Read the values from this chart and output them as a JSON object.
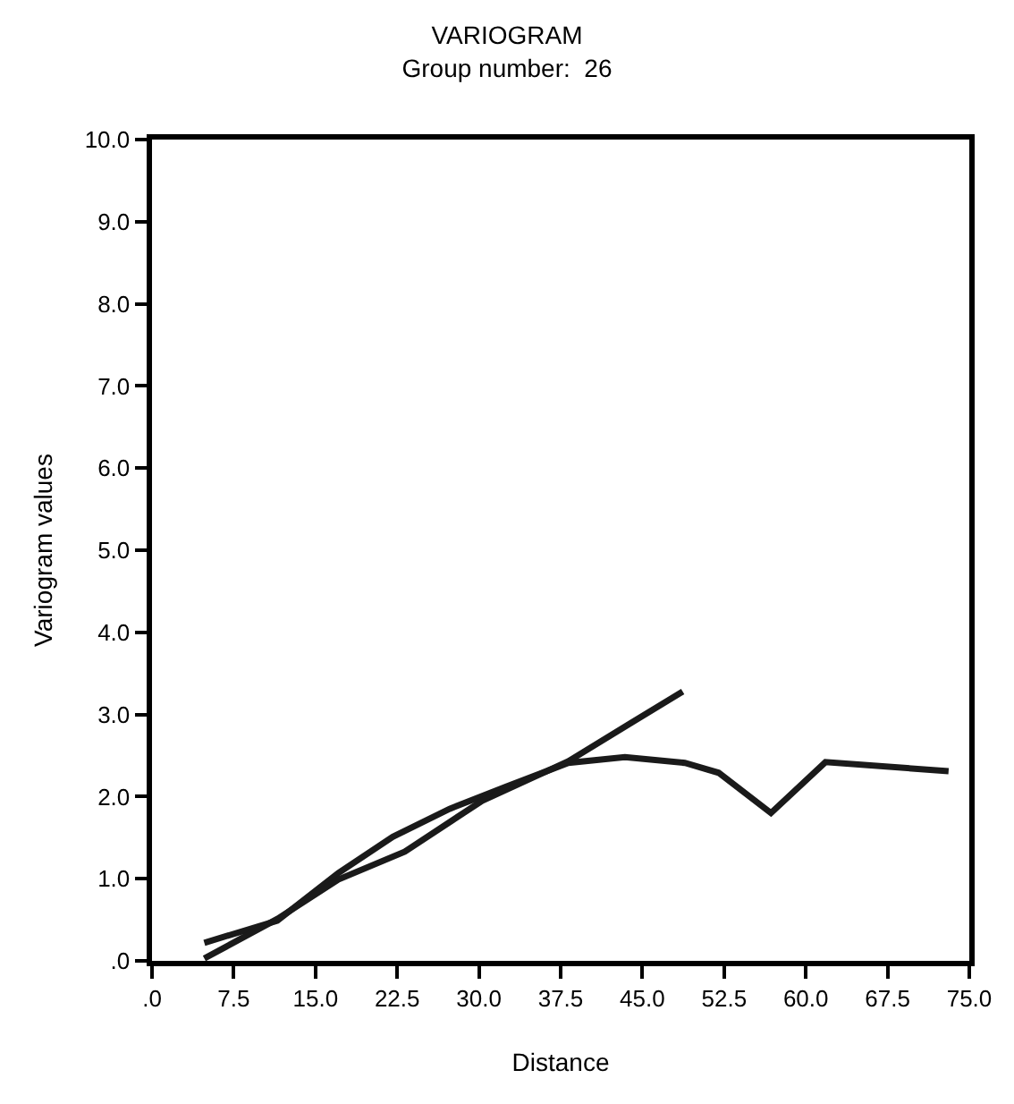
{
  "chart_data": {
    "type": "line",
    "title": "VARIOGRAM",
    "subtitle": "Group number:  26",
    "xlabel": "Distance",
    "ylabel": "Variogram values",
    "series": [
      {
        "color": "#1a1a1a",
        "x": [
          4.8,
          11.5,
          17.1,
          22.1,
          27.3,
          32.5,
          38.2,
          43.4,
          48.9,
          52.0,
          56.8,
          61.8,
          73.1
        ],
        "values": [
          0.22,
          0.49,
          1.07,
          1.51,
          1.85,
          2.12,
          2.41,
          2.48,
          2.41,
          2.29,
          1.8,
          2.42,
          2.31
        ]
      },
      {
        "color": "#1a1a1a",
        "x": [
          4.8,
          11.5,
          17.1,
          23.2,
          30.3,
          38.2,
          44.0,
          48.7
        ],
        "values": [
          0.03,
          0.51,
          0.99,
          1.33,
          1.95,
          2.43,
          2.9,
          3.28
        ]
      }
    ],
    "xlim": [
      0,
      75
    ],
    "ylim": [
      0,
      10
    ],
    "xticks": [
      {
        "value": 0,
        "label": ".0"
      },
      7.5,
      {
        "value": 15,
        "label": "15.0"
      },
      22.5,
      {
        "value": 30,
        "label": "30.0"
      },
      37.5,
      {
        "value": 45,
        "label": "45.0"
      },
      52.5,
      {
        "value": 60,
        "label": "60.0"
      },
      67.5,
      {
        "value": 75,
        "label": "75.0"
      }
    ],
    "yticks": [
      {
        "value": 0,
        "label": ".0"
      },
      {
        "value": 1,
        "label": "1.0"
      },
      {
        "value": 2,
        "label": "2.0"
      },
      {
        "value": 3,
        "label": "3.0"
      },
      {
        "value": 4,
        "label": "4.0"
      },
      {
        "value": 5,
        "label": "5.0"
      },
      {
        "value": 6,
        "label": "6.0"
      },
      {
        "value": 7,
        "label": "7.0"
      },
      {
        "value": 8,
        "label": "8.0"
      },
      {
        "value": 9,
        "label": "9.0"
      },
      {
        "value": 10,
        "label": "10.0"
      }
    ],
    "marker": "none",
    "line_style": "solid"
  }
}
